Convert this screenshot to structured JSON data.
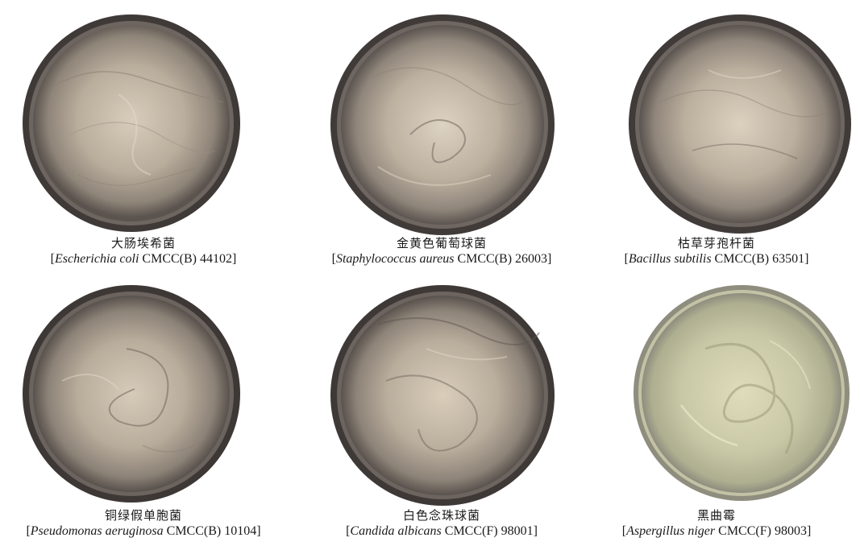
{
  "plates": [
    {
      "chinese_name": "大肠埃希菌",
      "bracket_open": "[",
      "species": "Escherichia coli",
      "strain": " CMCC(B) 44102",
      "bracket_close": "]",
      "medium_color": "#b9ad9c",
      "rim_color": "#3f3a38"
    },
    {
      "chinese_name": "金黄色葡萄球菌",
      "bracket_open": "[",
      "species": "Staphylococcus aureus",
      "strain": " CMCC(B) 26003",
      "bracket_close": "]",
      "medium_color": "#bcb09f",
      "rim_color": "#403b39"
    },
    {
      "chinese_name": "枯草芽孢杆菌",
      "bracket_open": "[",
      "species": "Bacillus subtilis",
      "strain": " CMCC(B) 63501",
      "bracket_close": "]",
      "medium_color": "#bbaf9e",
      "rim_color": "#403b39"
    },
    {
      "chinese_name": "铜绿假单胞菌",
      "bracket_open": "[",
      "species": "Pseudomonas aeruginosa",
      "strain": " CMCC(B) 10104",
      "bracket_close": "]",
      "medium_color": "#b8ac9b",
      "rim_color": "#3d3836"
    },
    {
      "chinese_name": "白色念珠球菌",
      "bracket_open": "[",
      "species": "Candida albicans",
      "strain": " CMCC(F) 98001",
      "bracket_close": "]",
      "medium_color": "#b9ad9c",
      "rim_color": "#3e3937"
    },
    {
      "chinese_name": "黑曲霉",
      "bracket_open": "[",
      "species": "Aspergillus niger",
      "strain": " CMCC(F) 98003",
      "bracket_close": "]",
      "medium_color": "#c9c8a6",
      "rim_color": "#8f8d7e"
    }
  ]
}
